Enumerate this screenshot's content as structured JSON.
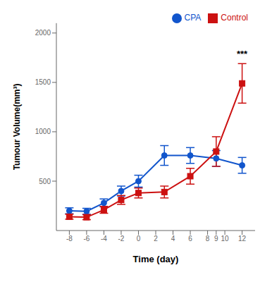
{
  "chart_data": {
    "type": "line",
    "xlabel": "Time (day)",
    "ylabel": "Tumour Volume(mm³)",
    "x": [
      -8,
      -6,
      -4,
      -2,
      0,
      3,
      6,
      9,
      12
    ],
    "series": [
      {
        "name": "CPA",
        "color": "#1155cc",
        "marker": "circle",
        "values": [
          200,
          195,
          280,
          400,
          500,
          760,
          760,
          730,
          660
        ],
        "errors": [
          30,
          30,
          40,
          50,
          60,
          100,
          80,
          80,
          80
        ]
      },
      {
        "name": "Control",
        "color": "#cc1111",
        "marker": "square",
        "values": [
          140,
          135,
          210,
          310,
          380,
          390,
          550,
          800,
          1490
        ],
        "errors": [
          25,
          25,
          35,
          45,
          50,
          60,
          80,
          150,
          200
        ]
      }
    ],
    "xlim": [
      -9.5,
      13.5
    ],
    "xticks": [
      -8,
      -6,
      -4,
      -2,
      0,
      2,
      4,
      6,
      8,
      9,
      10,
      12
    ],
    "ylim": [
      0,
      2100
    ],
    "yticks": [
      500,
      1000,
      1500,
      2000
    ],
    "annotations": [
      {
        "x": 12,
        "y": 1720,
        "text": "***"
      }
    ],
    "legend": "upper right",
    "grid": false
  }
}
